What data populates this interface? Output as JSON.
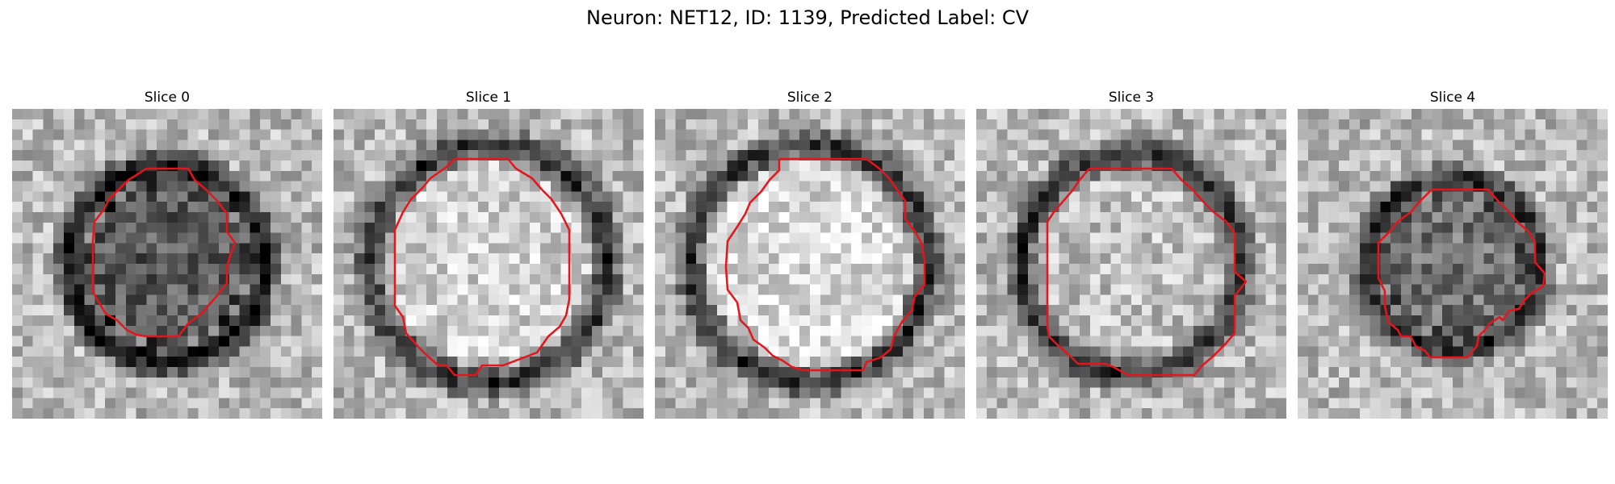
{
  "figure": {
    "title": "Neuron: NET12, ID: 1139, Predicted Label: CV",
    "contour_color": "#e8141b"
  },
  "slices": [
    {
      "title": "Slice 0",
      "seed": 11,
      "ring_darkness": 0.75,
      "inner_level": 0.35,
      "radius_frac": 0.33
    },
    {
      "title": "Slice 1",
      "seed": 23,
      "ring_darkness": 0.55,
      "inner_level": 0.82,
      "radius_frac": 0.4
    },
    {
      "title": "Slice 2",
      "seed": 37,
      "ring_darkness": 0.55,
      "inner_level": 0.85,
      "radius_frac": 0.4
    },
    {
      "title": "Slice 3",
      "seed": 41,
      "ring_darkness": 0.55,
      "inner_level": 0.75,
      "radius_frac": 0.37
    },
    {
      "title": "Slice 4",
      "seed": 53,
      "ring_darkness": 0.6,
      "inner_level": 0.45,
      "radius_frac": 0.29
    }
  ]
}
